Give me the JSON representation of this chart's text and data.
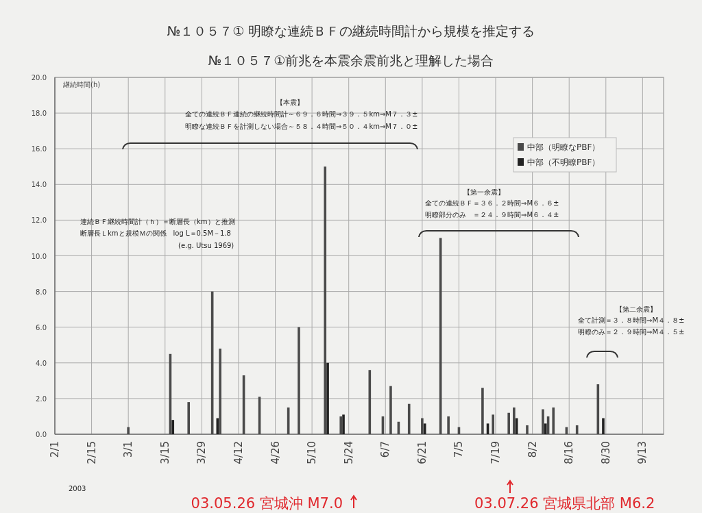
{
  "chart_data": {
    "type": "bar",
    "title": "№１０５７① 明瞭な連続ＢＦの継続時間計から規模を推定する",
    "subtitle": "№１０５７①前兆を本震余震前兆と理解した場合",
    "ylabel": "継続時間(h)",
    "xlim": [
      "2003-02-01",
      "2003-09-21"
    ],
    "xticks": [
      {
        "value": "2003-02-01",
        "label": "2/1"
      },
      {
        "value": "2003-02-15",
        "label": "2/15"
      },
      {
        "value": "2003-03-01",
        "label": "3/1"
      },
      {
        "value": "2003-03-15",
        "label": "3/15"
      },
      {
        "value": "2003-03-29",
        "label": "3/29"
      },
      {
        "value": "2003-04-12",
        "label": "4/12"
      },
      {
        "value": "2003-04-26",
        "label": "4/26"
      },
      {
        "value": "2003-05-10",
        "label": "5/10"
      },
      {
        "value": "2003-05-24",
        "label": "5/24"
      },
      {
        "value": "2003-06-07",
        "label": "6/7"
      },
      {
        "value": "2003-06-21",
        "label": "6/21"
      },
      {
        "value": "2003-07-05",
        "label": "7/5"
      },
      {
        "value": "2003-07-19",
        "label": "7/19"
      },
      {
        "value": "2003-08-02",
        "label": "8/2"
      },
      {
        "value": "2003-08-16",
        "label": "8/16"
      },
      {
        "value": "2003-08-30",
        "label": "8/30"
      },
      {
        "value": "2003-09-13",
        "label": "9/13"
      }
    ],
    "ylim": [
      0,
      20
    ],
    "yticks": [
      {
        "value": 0,
        "label": "0.0"
      },
      {
        "value": 2,
        "label": "2.0"
      },
      {
        "value": 4,
        "label": "4.0"
      },
      {
        "value": 6,
        "label": "6.0"
      },
      {
        "value": 8,
        "label": "8.0"
      },
      {
        "value": 10,
        "label": "10.0"
      },
      {
        "value": 12,
        "label": "12.0"
      },
      {
        "value": 14,
        "label": "14.0"
      },
      {
        "value": 16,
        "label": "16.0"
      },
      {
        "value": 18,
        "label": "18.0"
      },
      {
        "value": 20,
        "label": "20.0"
      }
    ],
    "grid": true,
    "legend": "top right",
    "series": [
      {
        "name": "中部（明瞭なPBF）",
        "color": "#4a4a4a",
        "x": [
          "2003-03-01",
          "2003-03-17",
          "2003-03-24",
          "2003-04-02",
          "2003-04-05",
          "2003-04-14",
          "2003-04-20",
          "2003-05-01",
          "2003-05-05",
          "2003-05-15",
          "2003-05-21",
          "2003-06-01",
          "2003-06-06",
          "2003-06-09",
          "2003-06-12",
          "2003-06-16",
          "2003-06-21",
          "2003-06-28",
          "2003-07-01",
          "2003-07-05",
          "2003-07-14",
          "2003-07-18",
          "2003-07-24",
          "2003-07-26",
          "2003-07-31",
          "2003-08-06",
          "2003-08-08",
          "2003-08-10",
          "2003-08-15",
          "2003-08-19",
          "2003-08-27"
        ],
        "values": [
          0.4,
          4.5,
          1.8,
          8.0,
          4.8,
          3.3,
          2.1,
          1.5,
          6.0,
          15.0,
          1.0,
          3.6,
          1.0,
          2.7,
          0.7,
          1.7,
          0.9,
          11.0,
          1.0,
          0.4,
          2.6,
          1.1,
          1.2,
          1.5,
          0.5,
          1.4,
          1.0,
          1.5,
          0.4,
          0.5,
          2.8
        ]
      },
      {
        "name": "中部（不明瞭PBF）",
        "color": "#222222",
        "x": [
          "2003-03-18",
          "2003-04-04",
          "2003-05-16",
          "2003-05-22",
          "2003-06-22",
          "2003-07-16",
          "2003-07-27",
          "2003-08-07",
          "2003-08-29"
        ],
        "values": [
          0.8,
          0.9,
          4.0,
          1.1,
          0.6,
          0.6,
          0.9,
          0.6,
          0.9
        ]
      }
    ],
    "annotations": [
      "【本震】",
      "全ての連続ＢＦ連続の継続時間計～６９．６時間⇒３９．５km⇒M７．３±",
      "明瞭な連続ＢＦを計測しない場合～５８．４時間⇒５０．４km⇒M７．０±",
      "連続ＢＦ継続時間計（ｈ）＝断層長（km）と推測",
      "断層長Ｌkmと規模Ｍの関係　log L＝0.5M－1.8",
      "(e.g. Utsu 1969)",
      "【第一余震】",
      "全ての連続ＢＦ＝３６．２時間⇒M６．６±",
      "明瞭部分のみ　＝２４．９時間⇒M６．４±",
      "【第二余震】",
      "全て計測＝３．８時間⇒M４．８±",
      "明瞭のみ＝２．９時間⇒M４．５±",
      "2003",
      "03.05.26 宮城沖 M7.0",
      "03.07.26 宮城県北部 M6.2"
    ]
  }
}
